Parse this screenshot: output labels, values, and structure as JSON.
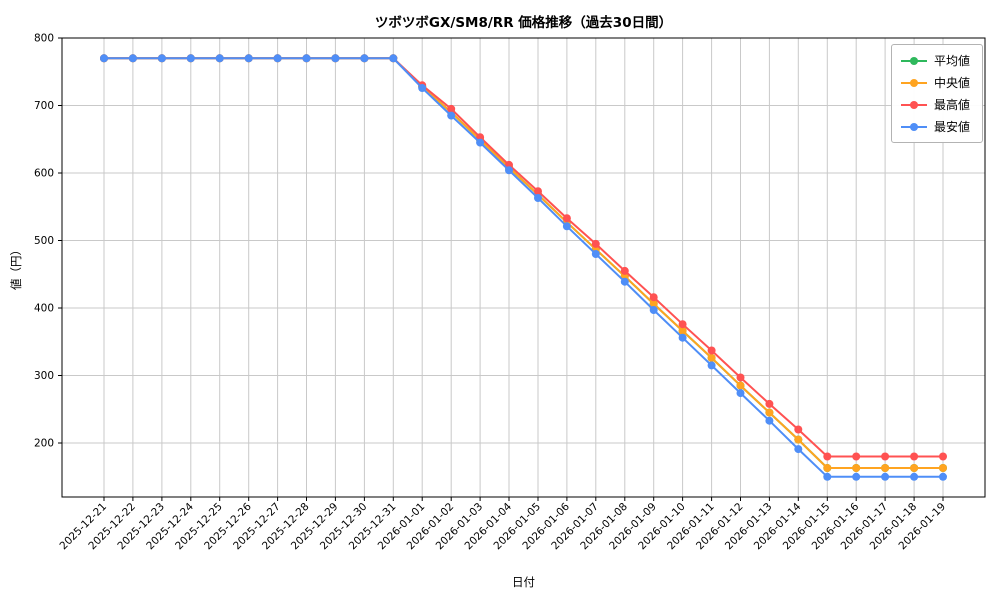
{
  "chart_data": {
    "type": "line",
    "title": "ツボツボGX/SM8/RR 価格推移（過去30日間）",
    "xlabel": "日付",
    "ylabel": "値（円）",
    "ylim": [
      120,
      800
    ],
    "yticks": [
      200,
      300,
      400,
      500,
      600,
      700,
      800
    ],
    "grid": true,
    "legend_position": "top-right",
    "x": [
      "2025-12-21",
      "2025-12-22",
      "2025-12-23",
      "2025-12-24",
      "2025-12-25",
      "2025-12-26",
      "2025-12-27",
      "2025-12-28",
      "2025-12-29",
      "2025-12-30",
      "2025-12-31",
      "2026-01-01",
      "2026-01-02",
      "2026-01-03",
      "2026-01-04",
      "2026-01-05",
      "2026-01-06",
      "2026-01-07",
      "2026-01-08",
      "2026-01-09",
      "2026-01-10",
      "2026-01-11",
      "2026-01-12",
      "2026-01-13",
      "2026-01-14",
      "2026-01-15",
      "2026-01-16",
      "2026-01-17",
      "2026-01-18",
      "2026-01-19"
    ],
    "series": [
      {
        "key": "average",
        "name": "平均値",
        "color": "#2eb85c",
        "values": [
          770,
          770,
          770,
          770,
          770,
          770,
          770,
          770,
          770,
          770,
          770,
          728,
          690,
          649,
          608,
          568,
          527,
          487,
          447,
          406,
          366,
          326,
          285,
          245,
          205,
          163,
          163,
          163,
          163,
          163
        ]
      },
      {
        "key": "median",
        "name": "中央値",
        "color": "#ffa420",
        "values": [
          770,
          770,
          770,
          770,
          770,
          770,
          770,
          770,
          770,
          770,
          770,
          728,
          690,
          649,
          608,
          568,
          527,
          487,
          447,
          406,
          366,
          326,
          285,
          245,
          205,
          163,
          163,
          163,
          163,
          163
        ]
      },
      {
        "key": "max",
        "name": "最高値",
        "color": "#ff5252",
        "values": [
          770,
          770,
          770,
          770,
          770,
          770,
          770,
          770,
          770,
          770,
          770,
          730,
          695,
          653,
          612,
          573,
          533,
          495,
          455,
          416,
          376,
          337,
          297,
          258,
          220,
          180,
          180,
          180,
          180,
          180
        ]
      },
      {
        "key": "min",
        "name": "最安値",
        "color": "#4f8ef7",
        "values": [
          770,
          770,
          770,
          770,
          770,
          770,
          770,
          770,
          770,
          770,
          770,
          726,
          685,
          645,
          604,
          563,
          521,
          480,
          439,
          397,
          356,
          315,
          274,
          233,
          191,
          150,
          150,
          150,
          150,
          150
        ]
      }
    ]
  }
}
